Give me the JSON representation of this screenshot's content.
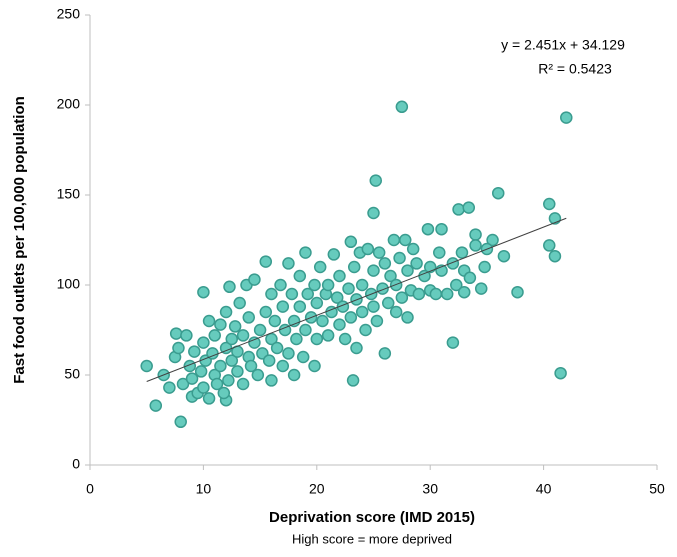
{
  "chart_data": {
    "type": "scatter",
    "x_label": "Deprivation score (IMD 2015)",
    "x_sublabel": "High score = more deprived",
    "y_label": "Fast food outlets per 100,000 population",
    "xlim": [
      0,
      50
    ],
    "xticks": [
      0,
      10,
      20,
      30,
      40,
      50
    ],
    "ylim": [
      0,
      250
    ],
    "yticks": [
      0,
      50,
      100,
      150,
      200,
      250
    ],
    "color": "#66cbbd",
    "edge_color": "#3a9c8f",
    "x": [
      5,
      5.8,
      8,
      27.5,
      42,
      41.5,
      32,
      36,
      40.5,
      41,
      41,
      40.5,
      37.7,
      25.2,
      25,
      31,
      32.5,
      33.4,
      35.5,
      34,
      23.2,
      16,
      12,
      9,
      10,
      12.3,
      6.5,
      7,
      7.5,
      7.6,
      7.8,
      8.2,
      8.5,
      8.8,
      9,
      9.2,
      9.5,
      9.8,
      10,
      10,
      10.2,
      10.5,
      10.5,
      10.8,
      11,
      11,
      11.2,
      11.5,
      11.5,
      11.8,
      12,
      12,
      12.2,
      12.5,
      12.5,
      12.8,
      13,
      13,
      13.2,
      13.5,
      13.5,
      13.8,
      14,
      14,
      14.2,
      14.5,
      14.5,
      14.8,
      15,
      15.2,
      15.5,
      15.5,
      15.8,
      16,
      16,
      16.3,
      16.5,
      16.8,
      17,
      17,
      17.2,
      17.5,
      17.5,
      17.8,
      18,
      18,
      18.2,
      18.5,
      18.5,
      18.8,
      19,
      19,
      19.2,
      19.5,
      19.8,
      19.8,
      20,
      20,
      20.3,
      20.5,
      20.8,
      21,
      21,
      21.3,
      21.5,
      21.8,
      22,
      22,
      22.3,
      22.5,
      22.8,
      23,
      23,
      23.3,
      23.5,
      23.5,
      23.8,
      24,
      24,
      24.3,
      24.5,
      24.8,
      25,
      25,
      25.3,
      25.5,
      25.8,
      26,
      26,
      26.3,
      26.5,
      26.8,
      27,
      27,
      27.3,
      27.5,
      27.8,
      28,
      28,
      28.3,
      28.5,
      28.8,
      29,
      29.5,
      29.8,
      30,
      30,
      30.5,
      30.8,
      31,
      31.5,
      32,
      32.3,
      32.8,
      33,
      33,
      33.5,
      34,
      34.5,
      34.8,
      35,
      36.5
    ],
    "values": [
      55,
      33,
      24,
      199,
      193,
      51,
      68,
      151,
      145,
      137,
      116,
      122,
      96,
      158,
      140,
      131,
      142,
      143,
      125,
      128,
      47,
      47,
      36,
      38,
      96,
      99,
      50,
      43,
      60,
      73,
      65,
      45,
      72,
      55,
      48,
      63,
      40,
      52,
      68,
      43,
      58,
      80,
      37,
      62,
      50,
      72,
      45,
      78,
      55,
      40,
      65,
      85,
      47,
      70,
      58,
      77,
      52,
      63,
      90,
      45,
      72,
      100,
      60,
      82,
      55,
      68,
      103,
      50,
      75,
      62,
      85,
      113,
      58,
      70,
      95,
      80,
      65,
      100,
      55,
      88,
      75,
      112,
      62,
      95,
      80,
      50,
      70,
      105,
      88,
      60,
      118,
      75,
      95,
      82,
      55,
      100,
      70,
      90,
      110,
      80,
      95,
      72,
      100,
      85,
      117,
      93,
      78,
      105,
      88,
      70,
      98,
      124,
      82,
      110,
      92,
      65,
      118,
      85,
      100,
      75,
      120,
      95,
      88,
      108,
      80,
      118,
      98,
      62,
      112,
      90,
      105,
      125,
      85,
      100,
      115,
      93,
      125,
      82,
      108,
      97,
      120,
      112,
      95,
      105,
      131,
      97,
      110,
      95,
      118,
      108,
      95,
      112,
      100,
      118,
      96,
      108,
      104,
      122,
      98,
      110,
      120,
      116
    ],
    "trendline": {
      "slope": 2.451,
      "intercept": 34.129,
      "x_range": [
        5,
        42
      ],
      "color": "#404040",
      "label": "y = 2.451x + 34.129",
      "r2": 0.5423,
      "r2_label": "R² = 0.5423"
    }
  }
}
